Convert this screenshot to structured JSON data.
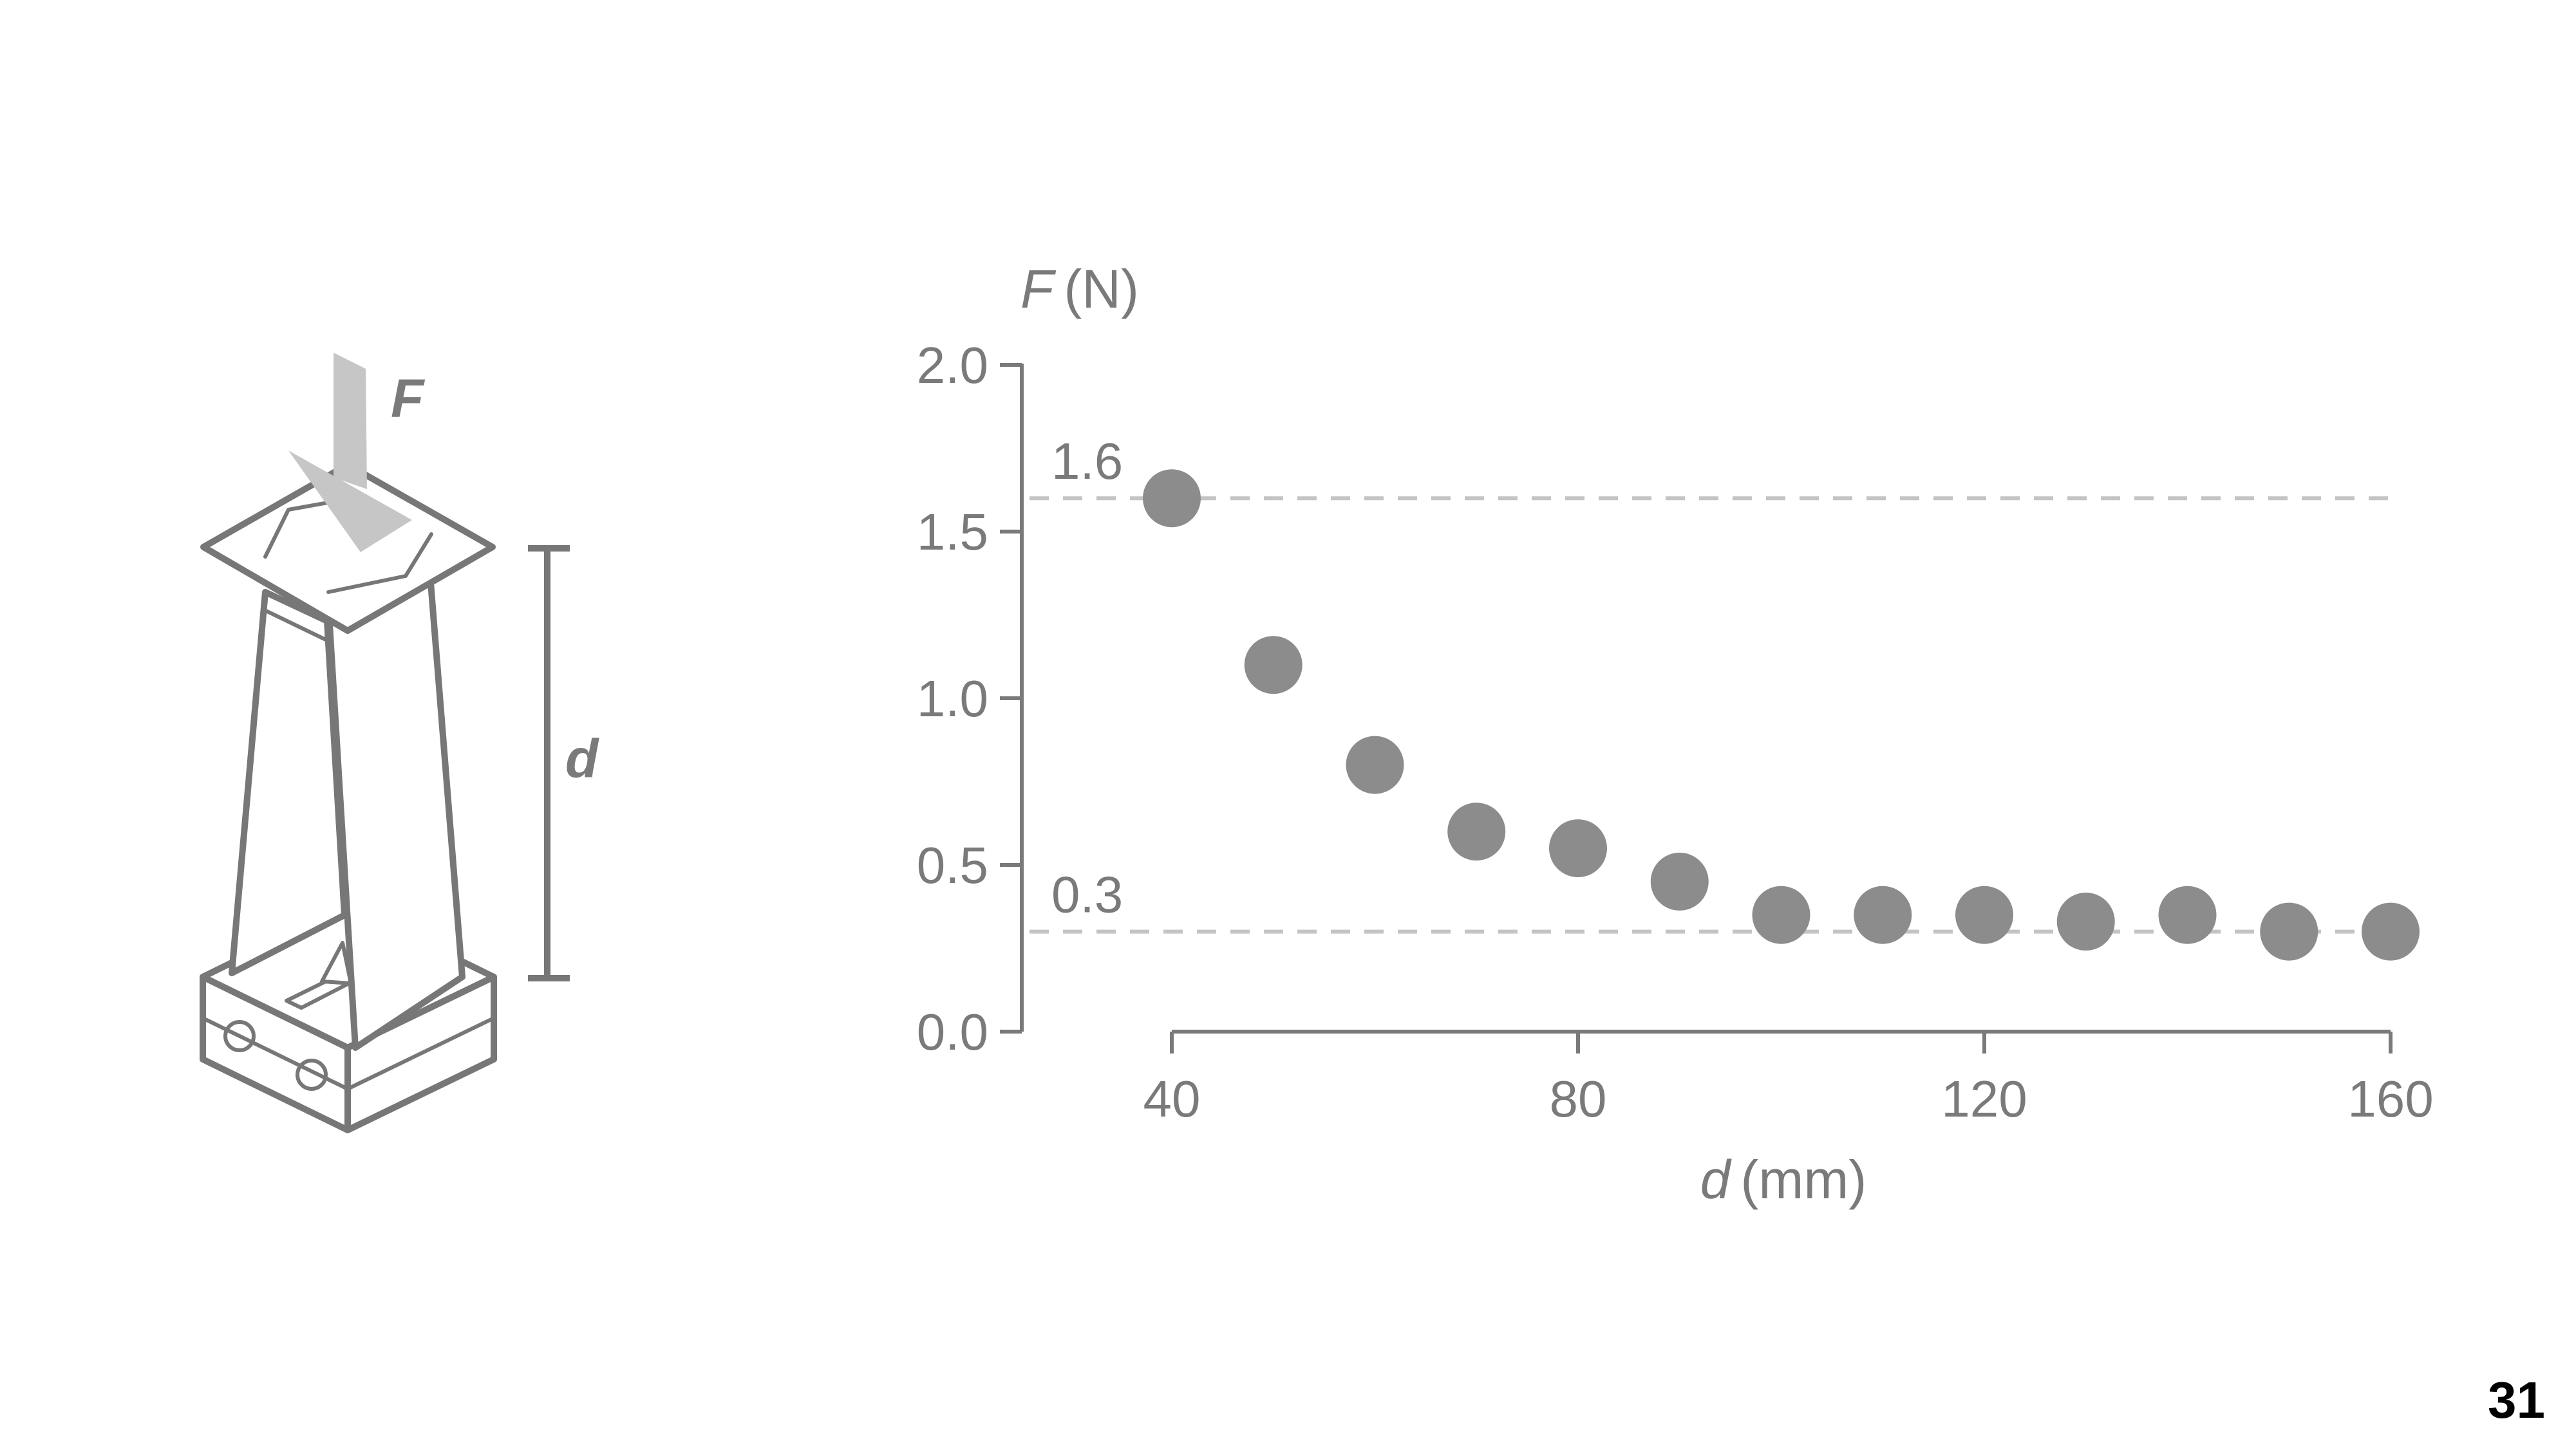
{
  "page_number": "31",
  "illustration": {
    "force_label": "F",
    "distance_label": "d"
  },
  "colors": {
    "axis": "#7a7a7a",
    "text": "#7a7a7a",
    "marker": "#8c8c8c",
    "reference_line": "#c4c4c4",
    "illustration_line": "#777777",
    "arrow": "#c6c6c6"
  },
  "chart_data": {
    "type": "scatter",
    "xlabel_var": "d",
    "xlabel_unit": "(mm)",
    "ylabel_var": "F",
    "ylabel_unit": "(N)",
    "xlim": [
      25,
      160
    ],
    "ylim": [
      0,
      2.0
    ],
    "x_ticks": [
      40,
      80,
      120,
      160
    ],
    "y_ticks": [
      "0.0",
      "0.5",
      "1.0",
      "1.5",
      "2.0"
    ],
    "grid": false,
    "reference_lines": [
      {
        "y": 1.6,
        "label": "1.6"
      },
      {
        "y": 0.3,
        "label": "0.3"
      }
    ],
    "x": [
      40,
      50,
      60,
      70,
      80,
      90,
      100,
      110,
      120,
      130,
      140,
      150,
      160
    ],
    "y": [
      1.6,
      1.1,
      0.8,
      0.6,
      0.55,
      0.45,
      0.35,
      0.35,
      0.35,
      0.33,
      0.35,
      0.3,
      0.3
    ]
  }
}
